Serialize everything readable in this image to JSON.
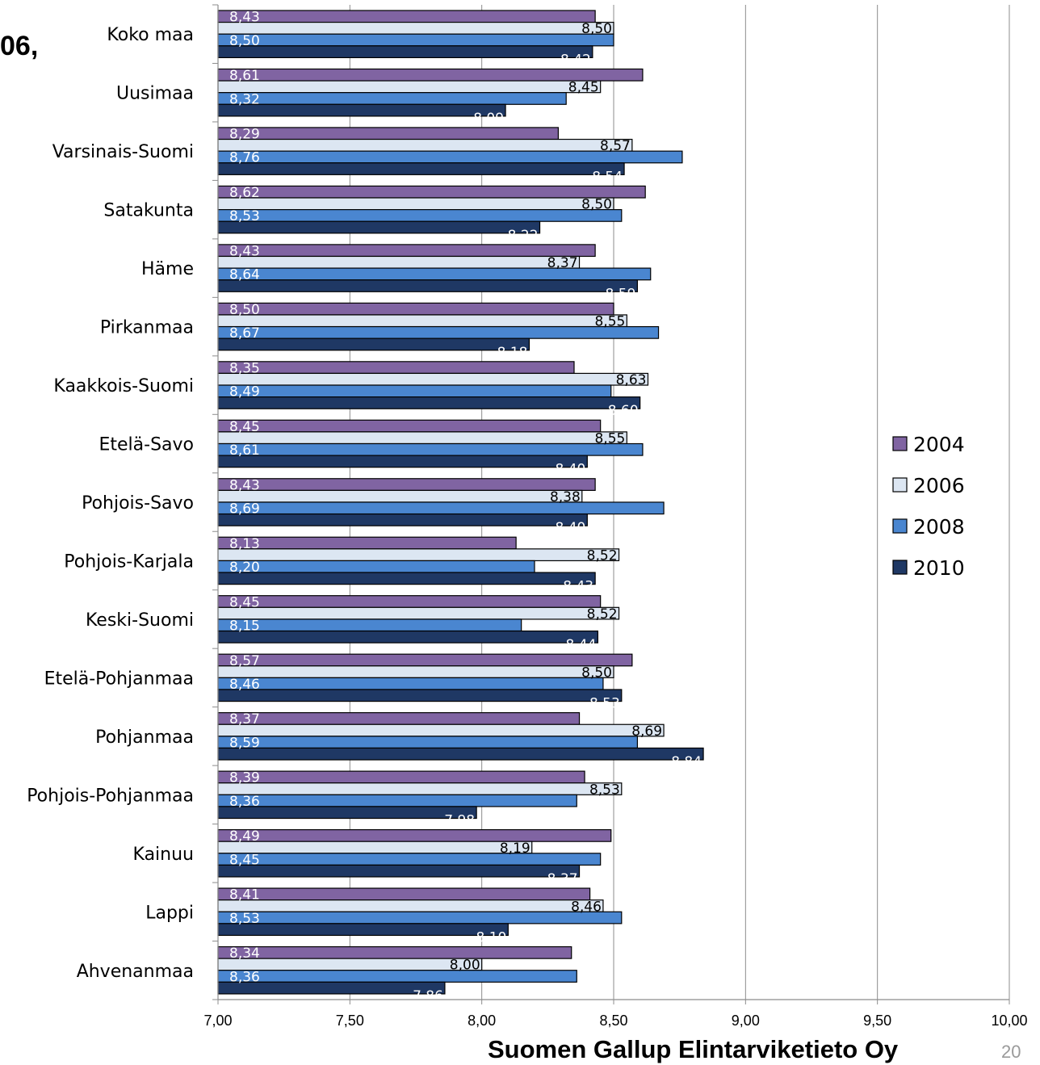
{
  "title_fragment": "06,",
  "footer": {
    "company": "Suomen Gallup Elintarviketieto Oy",
    "page_number": "20"
  },
  "chart_data": {
    "type": "bar",
    "orientation": "horizontal",
    "categories": [
      "Koko maa",
      "Uusimaa",
      "Varsinais-Suomi",
      "Satakunta",
      "Häme",
      "Pirkanmaa",
      "Kaakkois-Suomi",
      "Etelä-Savo",
      "Pohjois-Savo",
      "Pohjois-Karjala",
      "Keski-Suomi",
      "Etelä-Pohjanmaa",
      "Pohjanmaa",
      "Pohjois-Pohjanmaa",
      "Kainuu",
      "Lappi",
      "Ahvenanmaa"
    ],
    "series": [
      {
        "name": "2004",
        "color": "#8064a2",
        "values": [
          8.43,
          8.61,
          8.29,
          8.62,
          8.43,
          8.5,
          8.35,
          8.45,
          8.43,
          8.13,
          8.45,
          8.57,
          8.37,
          8.39,
          8.49,
          8.41,
          8.34
        ],
        "labels": [
          "8,43",
          "8,61",
          "8,29",
          "8,62",
          "8,43",
          "8,50",
          "8,35",
          "8,45",
          "8,43",
          "8,13",
          "8,45",
          "8,57",
          "8,37",
          "8,39",
          "8,49",
          "8,41",
          "8,34"
        ]
      },
      {
        "name": "2006",
        "color": "#dce6f2",
        "values": [
          8.5,
          8.45,
          8.57,
          8.5,
          8.37,
          8.55,
          8.63,
          8.55,
          8.38,
          8.52,
          8.52,
          8.5,
          8.69,
          8.53,
          8.19,
          8.46,
          8.0
        ],
        "labels": [
          "8,50",
          "8,45",
          "8,57",
          "8,50",
          "8,37",
          "8,55",
          "8,63",
          "8,55",
          "8,38",
          "8,52",
          "8,52",
          "8,50",
          "8,69",
          "8,53",
          "8,19",
          "8,46",
          "8,00"
        ]
      },
      {
        "name": "2008",
        "color": "#4a86d0",
        "values": [
          8.5,
          8.32,
          8.76,
          8.53,
          8.64,
          8.67,
          8.49,
          8.61,
          8.69,
          8.2,
          8.15,
          8.46,
          8.59,
          8.36,
          8.45,
          8.53,
          8.36
        ],
        "labels": [
          "8,50",
          "8,32",
          "8,76",
          "8,53",
          "8,64",
          "8,67",
          "8,49",
          "8,61",
          "8,69",
          "8,20",
          "8,15",
          "8,46",
          "8,59",
          "8,36",
          "8,45",
          "8,53",
          "8,36"
        ]
      },
      {
        "name": "2010",
        "color": "#1f3864",
        "values": [
          8.42,
          8.09,
          8.54,
          8.22,
          8.59,
          8.18,
          8.6,
          8.4,
          8.4,
          8.43,
          8.44,
          8.53,
          8.84,
          7.98,
          8.37,
          8.1,
          7.86
        ],
        "labels": [
          "8.42",
          "8.09",
          "8.54",
          "8.22",
          "8.59",
          "8.18",
          "8.60",
          "8.40",
          "8.40",
          "8.43",
          "8.44",
          "8.53",
          "8.84",
          "7.98",
          "8.37",
          "8.10",
          "7.86"
        ]
      }
    ],
    "xlim": [
      7.0,
      10.0
    ],
    "x_ticks": [
      7.0,
      7.5,
      8.0,
      8.5,
      9.0,
      9.5,
      10.0
    ],
    "x_tick_labels": [
      "7,00",
      "7,50",
      "8,00",
      "8,50",
      "9,00",
      "9,50",
      "10,00"
    ],
    "grid": "vertical",
    "legend": {
      "position": "right",
      "entries": [
        "2004",
        "2006",
        "2008",
        "2010"
      ]
    }
  }
}
